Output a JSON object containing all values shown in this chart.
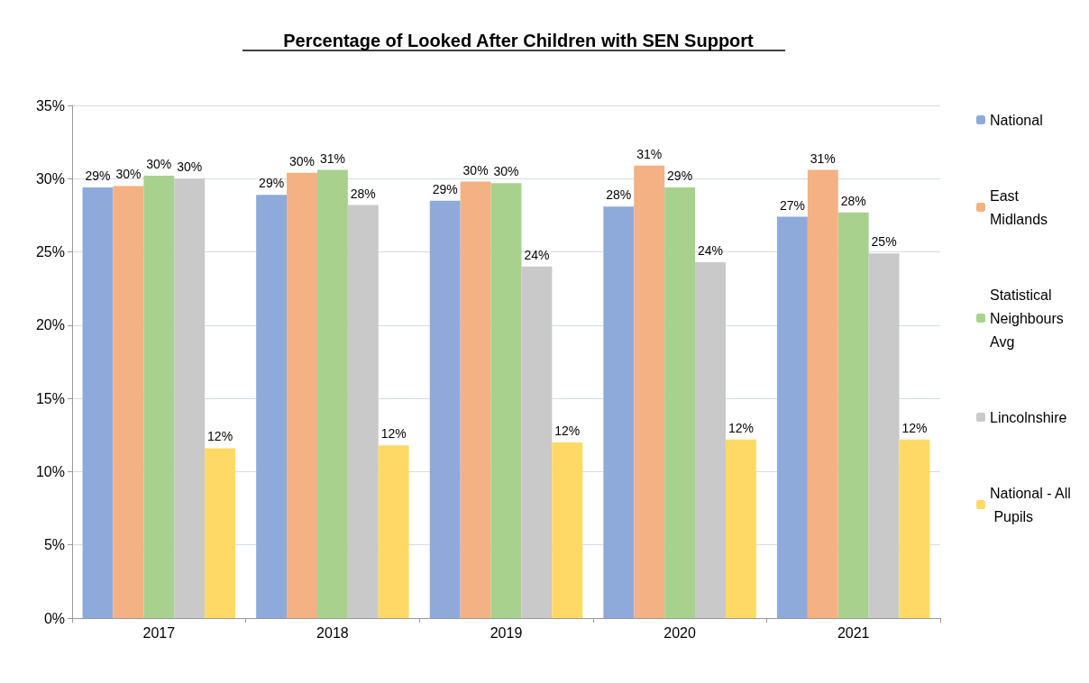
{
  "chart_data": {
    "type": "bar",
    "title": "Percentage of Looked After Children with SEN Support",
    "categories": [
      "2017",
      "2018",
      "2019",
      "2020",
      "2021"
    ],
    "series": [
      {
        "name": "National",
        "color": "#8eaadb",
        "values": [
          29.4,
          28.9,
          28.5,
          28.1,
          27.4
        ],
        "value_labels": [
          "29%",
          "29%",
          "29%",
          "28%",
          "27%"
        ]
      },
      {
        "name": "East Midlands",
        "color": "#f4b183",
        "values": [
          29.5,
          30.4,
          29.8,
          30.9,
          30.6
        ],
        "value_labels": [
          "30%",
          "30%",
          "30%",
          "31%",
          "31%"
        ]
      },
      {
        "name": "Statistical Neighbours Avg",
        "color": "#a9d18e",
        "values": [
          30.2,
          30.6,
          29.7,
          29.4,
          27.7
        ],
        "value_labels": [
          "30%",
          "31%",
          "30%",
          "29%",
          "28%"
        ]
      },
      {
        "name": "Lincolnshire",
        "color": "#c9c9c9",
        "values": [
          30.0,
          28.2,
          24.0,
          24.3,
          24.9
        ],
        "value_labels": [
          "30%",
          "28%",
          "24%",
          "24%",
          "25%"
        ]
      },
      {
        "name": "National - All Pupils",
        "color": "#ffd966",
        "values": [
          11.6,
          11.8,
          12.0,
          12.2,
          12.2
        ],
        "value_labels": [
          "12%",
          "12%",
          "12%",
          "12%",
          "12%"
        ]
      }
    ],
    "ylim": [
      0,
      35
    ],
    "yticks": [
      {
        "value": 0,
        "label": "0%"
      },
      {
        "value": 5,
        "label": "5%"
      },
      {
        "value": 10,
        "label": "10%"
      },
      {
        "value": 15,
        "label": "15%"
      },
      {
        "value": 20,
        "label": "20%"
      },
      {
        "value": 25,
        "label": "25%"
      },
      {
        "value": 30,
        "label": "30%"
      },
      {
        "value": 35,
        "label": "35%"
      }
    ],
    "grid": "y",
    "legend": "right"
  }
}
